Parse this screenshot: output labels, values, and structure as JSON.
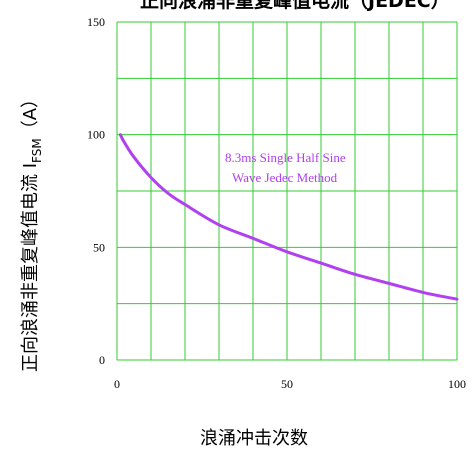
{
  "chart_data": {
    "type": "line",
    "title": "正向浪涌非重复峰值电流（JEDEC）",
    "xlabel": "浪涌冲击次数",
    "ylabel_main": "正向浪涌非重复峰值电流 I",
    "ylabel_sub": "FSM",
    "ylabel_unit": "（A）",
    "xlim": [
      0,
      100
    ],
    "ylim": [
      0,
      150
    ],
    "x_ticks": [
      0,
      50,
      100
    ],
    "y_ticks": [
      0,
      50,
      100,
      150
    ],
    "grid": true,
    "grid_x_step": 10,
    "grid_y_step": 25,
    "grid_color": "#33cc33",
    "series": [
      {
        "color": "#b040f0",
        "x": [
          1,
          2,
          5,
          10,
          15,
          20,
          30,
          40,
          50,
          60,
          70,
          80,
          90,
          100
        ],
        "y": [
          100,
          97,
          90,
          81,
          74,
          69,
          60,
          54,
          48,
          43,
          38,
          34,
          30,
          27
        ]
      }
    ],
    "annotation": {
      "line1": "8.3ms Single Half Sine",
      "line2": "Wave Jedec Method",
      "color": "#b040f0"
    }
  }
}
